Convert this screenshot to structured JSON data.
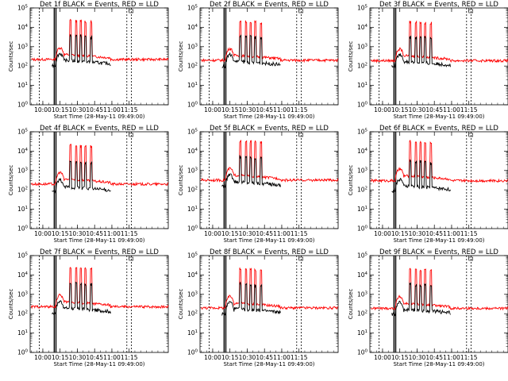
{
  "chart_data": [
    {
      "type": "line",
      "title": "Det 1f BLACK = Events, RED = LLD",
      "xlabel": "Start Time (28-May-11 09:49:00)",
      "ylabel": "Counts/sec",
      "xticks": [
        "10:00",
        "10:15",
        "10:30",
        "10:45",
        "11:00",
        "11:15"
      ],
      "yscale": "log",
      "ylim": [
        1,
        100000
      ],
      "black_base": 110,
      "red_base": 220,
      "series": [
        {
          "name": "BLACK = Events",
          "color": "#000000"
        },
        {
          "name": "RED = LLD",
          "color": "#ff0000"
        }
      ]
    },
    {
      "type": "line",
      "title": "Det 2f BLACK = Events, RED = LLD",
      "xlabel": "Start Time (28-May-11 09:49:00)",
      "ylabel": "Counts/sec",
      "xticks": [
        "10:00",
        "10:15",
        "10:30",
        "10:45",
        "11:00",
        "11:15"
      ],
      "yscale": "log",
      "ylim": [
        1,
        100000
      ],
      "black_base": 100,
      "red_base": 200,
      "series": [
        {
          "name": "BLACK = Events",
          "color": "#000000"
        },
        {
          "name": "RED = LLD",
          "color": "#ff0000"
        }
      ]
    },
    {
      "type": "line",
      "title": "Det 3f BLACK = Events, RED = LLD",
      "xlabel": "Start Time (28-May-11 09:49:00)",
      "ylabel": "Counts/sec",
      "xticks": [
        "10:00",
        "10:15",
        "10:30",
        "10:45",
        "11:00",
        "11:15"
      ],
      "yscale": "log",
      "ylim": [
        1,
        100000
      ],
      "black_base": 95,
      "red_base": 190,
      "series": [
        {
          "name": "BLACK = Events",
          "color": "#000000"
        },
        {
          "name": "RED = LLD",
          "color": "#ff0000"
        }
      ]
    },
    {
      "type": "line",
      "title": "Det 4f BLACK = Events, RED = LLD",
      "xlabel": "Start Time (28-May-11 09:49:00)",
      "ylabel": "Counts/sec",
      "xticks": [
        "10:00",
        "10:15",
        "10:30",
        "10:45",
        "11:00",
        "11:15"
      ],
      "yscale": "log",
      "ylim": [
        1,
        100000
      ],
      "black_base": 80,
      "red_base": 200,
      "series": [
        {
          "name": "BLACK = Events",
          "color": "#000000"
        },
        {
          "name": "RED = LLD",
          "color": "#ff0000"
        }
      ]
    },
    {
      "type": "line",
      "title": "Det 5f BLACK = Events, RED = LLD",
      "xlabel": "Start Time (28-May-11 09:49:00)",
      "ylabel": "Counts/sec",
      "xticks": [
        "10:00",
        "10:15",
        "10:30",
        "10:45",
        "11:00",
        "11:15"
      ],
      "yscale": "log",
      "ylim": [
        1,
        100000
      ],
      "black_base": 150,
      "red_base": 320,
      "series": [
        {
          "name": "BLACK = Events",
          "color": "#000000"
        },
        {
          "name": "RED = LLD",
          "color": "#ff0000"
        }
      ]
    },
    {
      "type": "line",
      "title": "Det 6f BLACK = Events, RED = LLD",
      "xlabel": "Start Time (28-May-11 09:49:00)",
      "ylabel": "Counts/sec",
      "xticks": [
        "10:00",
        "10:15",
        "10:30",
        "10:45",
        "11:00",
        "11:15"
      ],
      "yscale": "log",
      "ylim": [
        1,
        100000
      ],
      "black_base": 90,
      "red_base": 300,
      "series": [
        {
          "name": "BLACK = Events",
          "color": "#000000"
        },
        {
          "name": "RED = LLD",
          "color": "#ff0000"
        }
      ]
    },
    {
      "type": "line",
      "title": "Det 7f BLACK = Events, RED = LLD",
      "xlabel": "Start Time (28-May-11 09:49:00)",
      "ylabel": "Counts/sec",
      "xticks": [
        "10:00",
        "10:15",
        "10:30",
        "10:45",
        "11:00",
        "11:15"
      ],
      "yscale": "log",
      "ylim": [
        1,
        100000
      ],
      "black_base": 110,
      "red_base": 230,
      "series": [
        {
          "name": "BLACK = Events",
          "color": "#000000"
        },
        {
          "name": "RED = LLD",
          "color": "#ff0000"
        }
      ]
    },
    {
      "type": "line",
      "title": "Det 8f BLACK = Events, RED = LLD",
      "xlabel": "Start Time (28-May-11 09:49:00)",
      "ylabel": "Counts/sec",
      "xticks": [
        "10:00",
        "10:15",
        "10:30",
        "10:45",
        "11:00",
        "11:15"
      ],
      "yscale": "log",
      "ylim": [
        1,
        100000
      ],
      "black_base": 100,
      "red_base": 200,
      "series": [
        {
          "name": "BLACK = Events",
          "color": "#000000"
        },
        {
          "name": "RED = LLD",
          "color": "#ff0000"
        }
      ]
    },
    {
      "type": "line",
      "title": "Det 9f BLACK = Events, RED = LLD",
      "xlabel": "Start Time (28-May-11 09:49:00)",
      "ylabel": "Counts/sec",
      "xticks": [
        "10:00",
        "10:15",
        "10:30",
        "10:45",
        "11:00",
        "11:15"
      ],
      "yscale": "log",
      "ylim": [
        1,
        100000
      ],
      "black_base": 95,
      "red_base": 190,
      "series": [
        {
          "name": "BLACK = Events",
          "color": "#000000"
        },
        {
          "name": "RED = LLD",
          "color": "#ff0000"
        }
      ]
    }
  ]
}
